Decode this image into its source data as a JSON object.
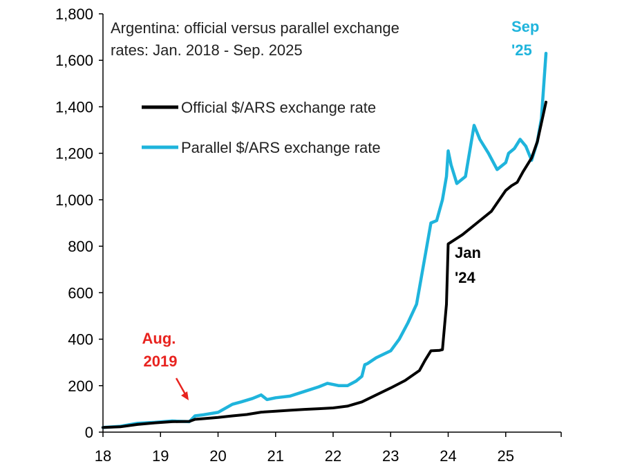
{
  "chart_data": {
    "type": "line",
    "title_lines": [
      "Argentina: official versus parallel exchange",
      "rates: Jan. 2018 - Sep. 2025"
    ],
    "xlabel": "",
    "ylabel": "",
    "xlim": [
      2018,
      2026
    ],
    "ylim": [
      0,
      1800
    ],
    "x_ticks": [
      2018,
      2019,
      2020,
      2021,
      2022,
      2023,
      2024,
      2025
    ],
    "x_tick_labels": [
      "18",
      "19",
      "20",
      "21",
      "22",
      "23",
      "24",
      "25"
    ],
    "y_ticks": [
      0,
      200,
      400,
      600,
      800,
      1000,
      1200,
      1400,
      1600,
      1800
    ],
    "y_tick_labels": [
      "0",
      "200",
      "400",
      "600",
      "800",
      "1,000",
      "1,200",
      "1,400",
      "1,600",
      "1,800"
    ],
    "legend_position": "upper-left",
    "series": [
      {
        "name": "Official $/ARS exchange rate",
        "color": "#000000",
        "x": [
          2018.0,
          2018.3,
          2018.6,
          2018.9,
          2019.2,
          2019.5,
          2019.6,
          2019.75,
          2020.0,
          2020.25,
          2020.5,
          2020.75,
          2021.0,
          2021.25,
          2021.5,
          2021.75,
          2022.0,
          2022.25,
          2022.5,
          2022.75,
          2023.0,
          2023.25,
          2023.5,
          2023.6,
          2023.7,
          2023.85,
          2023.9,
          2023.97,
          2024.0,
          2024.25,
          2024.5,
          2024.75,
          2025.0,
          2025.1,
          2025.2,
          2025.3,
          2025.45,
          2025.55,
          2025.62,
          2025.7
        ],
        "y": [
          20,
          23,
          33,
          40,
          45,
          46,
          55,
          58,
          63,
          70,
          76,
          86,
          90,
          94,
          98,
          101,
          104,
          112,
          130,
          160,
          190,
          222,
          265,
          310,
          350,
          352,
          355,
          550,
          810,
          850,
          900,
          950,
          1040,
          1060,
          1075,
          1120,
          1180,
          1250,
          1330,
          1420
        ]
      },
      {
        "name": "Parallel $/ARS exchange rate",
        "color": "#1fb4dc",
        "x": [
          2018.0,
          2018.3,
          2018.6,
          2018.9,
          2019.2,
          2019.5,
          2019.6,
          2019.75,
          2020.0,
          2020.25,
          2020.4,
          2020.6,
          2020.75,
          2020.85,
          2021.0,
          2021.25,
          2021.5,
          2021.75,
          2021.9,
          2022.0,
          2022.1,
          2022.25,
          2022.4,
          2022.5,
          2022.55,
          2022.6,
          2022.75,
          2023.0,
          2023.15,
          2023.3,
          2023.45,
          2023.5,
          2023.6,
          2023.7,
          2023.8,
          2023.9,
          2023.97,
          2024.0,
          2024.05,
          2024.15,
          2024.3,
          2024.45,
          2024.55,
          2024.7,
          2024.85,
          2025.0,
          2025.05,
          2025.15,
          2025.25,
          2025.35,
          2025.45,
          2025.55,
          2025.62,
          2025.7
        ],
        "y": [
          20,
          25,
          38,
          42,
          48,
          45,
          70,
          75,
          85,
          120,
          130,
          145,
          160,
          140,
          148,
          155,
          175,
          195,
          210,
          205,
          200,
          200,
          220,
          240,
          290,
          295,
          320,
          350,
          400,
          470,
          550,
          620,
          760,
          900,
          910,
          1000,
          1100,
          1210,
          1150,
          1070,
          1100,
          1320,
          1260,
          1200,
          1130,
          1160,
          1200,
          1220,
          1260,
          1230,
          1170,
          1250,
          1350,
          1630
        ]
      }
    ],
    "annotations": [
      {
        "id": "aug-2019",
        "lines": [
          "Aug.",
          "2019"
        ],
        "color": "#e8231f",
        "points_to": [
          2019.5,
          50
        ]
      },
      {
        "id": "jan-24",
        "lines": [
          "Jan",
          "'24"
        ],
        "color": "#000000"
      },
      {
        "id": "sep-25",
        "lines": [
          "Sep",
          "'25"
        ],
        "color": "#1fb4dc"
      }
    ]
  }
}
